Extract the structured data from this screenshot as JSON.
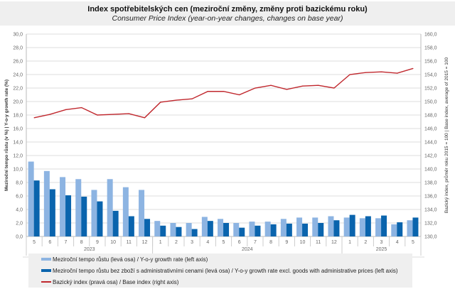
{
  "chart_data": {
    "type": "bar+line",
    "title": "Index spotřebitelských cen (meziroční změny, změny proti bazickému roku)",
    "subtitle": "Consumer Price Index (year-on-year changes, changes on base year)",
    "ylabel_left": "Meziroční tempo růstu (v %) | Y-o-y growth rate (%)",
    "ylabel_right": "Bazický index, průměr roku 2015 = 100 | Base index, average of 2015 = 100",
    "ylim_left": [
      0,
      30
    ],
    "ylim_right": [
      130,
      160
    ],
    "yticks_left": [
      "0,0",
      "2,0",
      "4,0",
      "6,0",
      "8,0",
      "10,0",
      "12,0",
      "14,0",
      "16,0",
      "18,0",
      "20,0",
      "22,0",
      "24,0",
      "26,0",
      "28,0",
      "30,0"
    ],
    "yticks_right": [
      "130,0",
      "132,0",
      "134,0",
      "136,0",
      "138,0",
      "140,0",
      "142,0",
      "144,0",
      "146,0",
      "148,0",
      "150,0",
      "152,0",
      "154,0",
      "156,0",
      "158,0",
      "160,0"
    ],
    "categories": [
      "5",
      "6",
      "7",
      "8",
      "9",
      "10",
      "11",
      "12",
      "1",
      "2",
      "3",
      "4",
      "5",
      "6",
      "7",
      "8",
      "9",
      "10",
      "11",
      "12",
      "1",
      "2",
      "3",
      "4",
      "5"
    ],
    "year_groups": [
      {
        "label": "2023",
        "count": 8
      },
      {
        "label": "2024",
        "count": 12
      },
      {
        "label": "2025",
        "count": 5
      }
    ],
    "grid": true,
    "legend_position": "bottom",
    "series": [
      {
        "name": "Meziroční tempo růstu (levá osa) / Y-o-y growth rate (left axis)",
        "type": "bar",
        "axis": "left",
        "color": "#8db4e2",
        "values": [
          11.1,
          9.7,
          8.8,
          8.5,
          6.9,
          8.5,
          7.3,
          6.9,
          2.3,
          2.0,
          2.0,
          2.9,
          2.6,
          2.0,
          2.2,
          2.2,
          2.6,
          2.8,
          2.8,
          3.0,
          2.8,
          2.7,
          2.7,
          1.8,
          2.4
        ]
      },
      {
        "name": "Meziroční tempo růstu bez zboží s administrativními  cenami (levá osa) / Y-o-y growth rate excl. goods with administrative  prices (left axis)",
        "type": "bar",
        "axis": "left",
        "color": "#0a64ad",
        "values": [
          8.3,
          7.0,
          6.1,
          5.9,
          5.2,
          3.8,
          3.0,
          2.6,
          1.6,
          1.4,
          1.1,
          2.3,
          2.0,
          1.3,
          1.6,
          1.8,
          1.9,
          1.9,
          2.0,
          2.4,
          3.2,
          3.0,
          3.1,
          2.1,
          2.8
        ]
      },
      {
        "name": "Bazický index (pravá osa) / Base index (right axis)",
        "type": "line",
        "axis": "right",
        "color": "#c0272d",
        "values": [
          147.6,
          148.1,
          148.8,
          149.1,
          148.0,
          148.1,
          148.2,
          147.6,
          149.9,
          150.2,
          150.4,
          151.5,
          151.5,
          151.0,
          152.0,
          152.4,
          151.8,
          152.3,
          152.4,
          152.0,
          154.0,
          154.3,
          154.4,
          154.2,
          154.9
        ]
      }
    ]
  }
}
